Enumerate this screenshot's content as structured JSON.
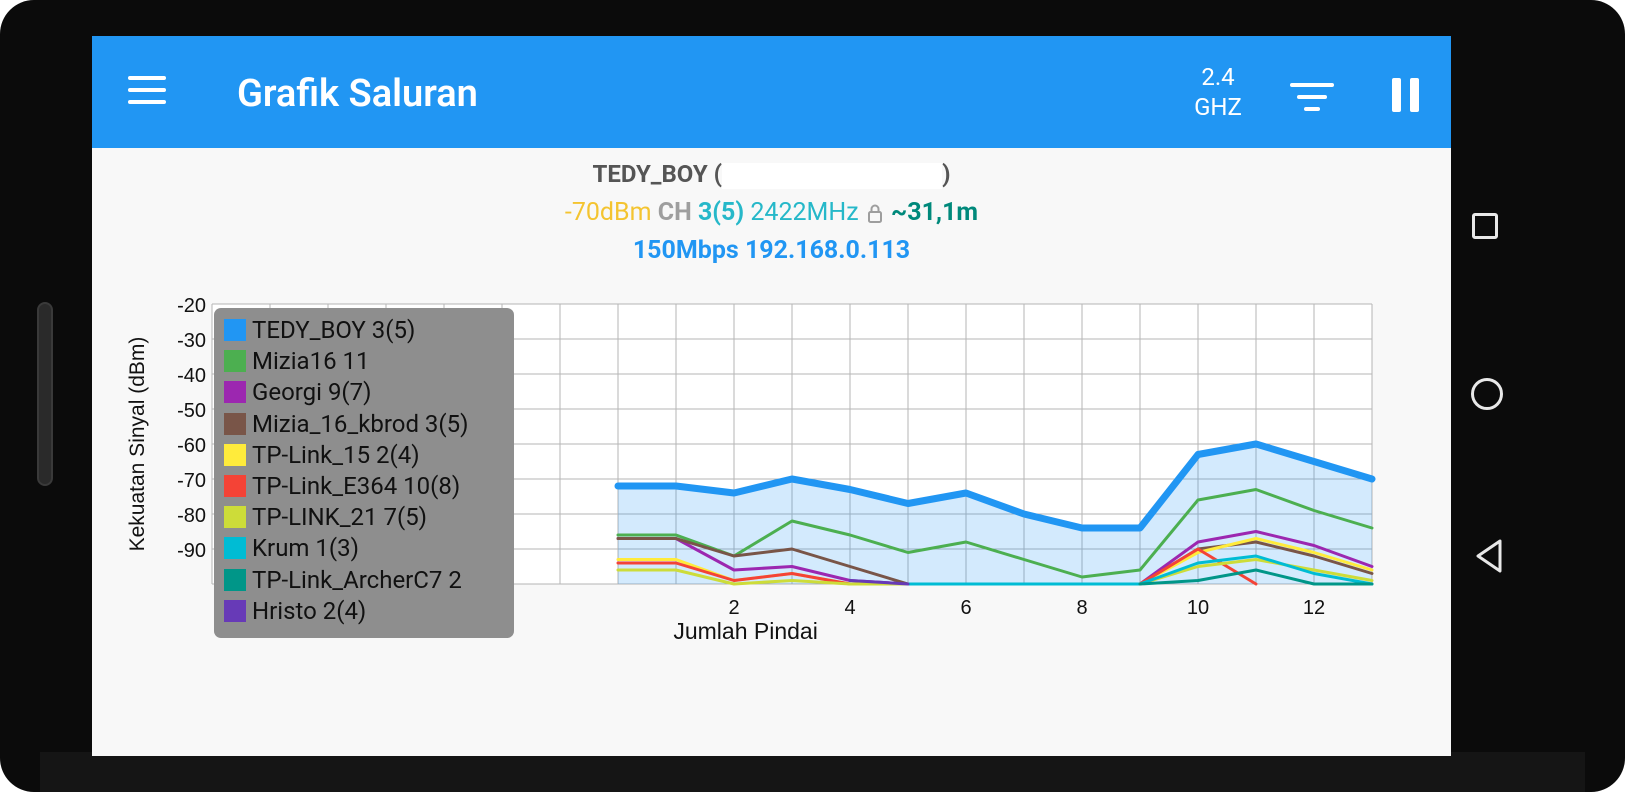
{
  "app": {
    "title": "Grafik Saluran",
    "band_top": "2.4",
    "band_bottom": "GHZ",
    "icons": {
      "menu": "hamburger-menu-icon",
      "filter": "filter-icon",
      "pause": "pause-icon"
    }
  },
  "connection": {
    "ssid": "TEDY_BOY",
    "paren_open": "(",
    "paren_close": ")",
    "signal": "-70dBm",
    "ch_label": "CH",
    "channel": "3(5)",
    "frequency": "2422MHz",
    "distance": "~31,1m",
    "speed": "150Mbps",
    "ip": "192.168.0.113"
  },
  "nav": {
    "icons": [
      "recent-apps-icon",
      "home-icon",
      "back-icon"
    ]
  },
  "colors": {
    "appbar": "#2196f3"
  },
  "chart_data": {
    "type": "line",
    "xlabel": "Jumlah Pindai",
    "ylabel": "Kekuatan Sinyal (dBm)",
    "ylim": [
      -100,
      -20
    ],
    "xlim": [
      -7,
      13
    ],
    "yticks": [
      -20,
      -30,
      -40,
      -50,
      -60,
      -70,
      -80,
      -90
    ],
    "xticks": [
      2,
      4,
      6,
      8,
      10,
      12
    ],
    "legend_position": "top-left",
    "series": [
      {
        "name": "TEDY_BOY 3(5)",
        "color": "#2196f3",
        "width": 7,
        "fill": true,
        "x": [
          0,
          1,
          2,
          3,
          4,
          5,
          6,
          7,
          8,
          9,
          10,
          11,
          12,
          13
        ],
        "y": [
          -72,
          -72,
          -74,
          -70,
          -73,
          -77,
          -74,
          -80,
          -84,
          -84,
          -63,
          -60,
          -65,
          -70
        ]
      },
      {
        "name": "Mizia16 11",
        "color": "#4caf50",
        "width": 3,
        "x": [
          0,
          1,
          2,
          3,
          4,
          5,
          6,
          7,
          8,
          9,
          10,
          11,
          12,
          13
        ],
        "y": [
          -86,
          -86,
          -92,
          -82,
          -86,
          -91,
          -88,
          -93,
          -98,
          -96,
          -76,
          -73,
          -79,
          -84
        ]
      },
      {
        "name": "Georgi 9(7)",
        "color": "#9c27b0",
        "width": 3,
        "x": [
          0,
          1,
          2,
          3,
          4,
          5,
          9,
          10,
          11,
          12,
          13
        ],
        "y": [
          -87,
          -87,
          -96,
          -95,
          -99,
          -100,
          -100,
          -88,
          -85,
          -89,
          -95
        ]
      },
      {
        "name": "Mizia_16_kbrod 3(5)",
        "color": "#795548",
        "width": 3,
        "x": [
          0,
          1,
          2,
          3,
          4,
          5,
          9,
          10,
          11,
          12,
          13
        ],
        "y": [
          -87,
          -87,
          -92,
          -90,
          -95,
          -100,
          -100,
          -90,
          -88,
          -92,
          -97
        ]
      },
      {
        "name": "TP-Link_15 2(4)",
        "color": "#ffeb3b",
        "width": 3,
        "x": [
          0,
          1,
          2,
          3,
          4,
          5,
          9,
          10,
          11,
          12,
          13
        ],
        "y": [
          -93,
          -93,
          -99,
          -97,
          -100,
          -100,
          -100,
          -91,
          -87,
          -91,
          -96
        ]
      },
      {
        "name": "TP-Link_E364 10(8)",
        "color": "#f44336",
        "width": 3,
        "x": [
          0,
          1,
          2,
          3,
          4,
          5,
          9,
          10,
          11
        ],
        "y": [
          -94,
          -94,
          -99,
          -97,
          -100,
          -100,
          -100,
          -90,
          -100
        ]
      },
      {
        "name": "TP-LINK_21 7(5)",
        "color": "#cddc39",
        "width": 3,
        "x": [
          0,
          1,
          2,
          3,
          4,
          5,
          9,
          10,
          11,
          12,
          13
        ],
        "y": [
          -96,
          -96,
          -100,
          -99,
          -100,
          -100,
          -100,
          -95,
          -93,
          -96,
          -99
        ]
      },
      {
        "name": "Krum 1(3)",
        "color": "#00bcd4",
        "width": 3,
        "x": [
          5,
          6,
          7,
          8,
          9,
          10,
          11,
          12,
          13
        ],
        "y": [
          -100,
          -100,
          -100,
          -100,
          -100,
          -94,
          -92,
          -97,
          -100
        ]
      },
      {
        "name": "TP-Link_ArcherC7 2",
        "color": "#009688",
        "width": 3,
        "x": [
          9,
          10,
          11,
          12,
          13
        ],
        "y": [
          -100,
          -99,
          -96,
          -100,
          -100
        ]
      },
      {
        "name": "Hristo 2(4)",
        "color": "#673ab7",
        "width": 3,
        "x": [
          4,
          5
        ],
        "y": [
          -99,
          -100
        ]
      }
    ]
  }
}
